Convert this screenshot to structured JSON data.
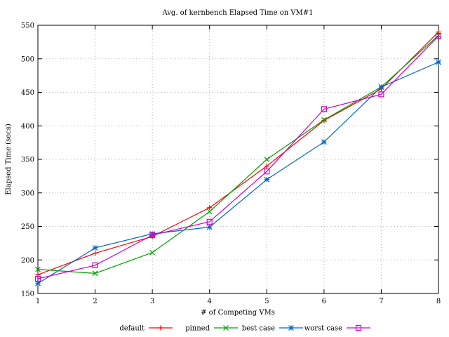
{
  "chart_data": {
    "type": "line",
    "title": "Avg. of kernbench Elapsed Time on VM#1",
    "xlabel": "# of Competing VMs",
    "ylabel": "Elapsed Time (secs)",
    "x": [
      1,
      2,
      3,
      4,
      5,
      6,
      7,
      8
    ],
    "xlim": [
      1,
      8
    ],
    "ylim": [
      150,
      550
    ],
    "xticks": [
      1,
      2,
      3,
      4,
      5,
      6,
      7,
      8
    ],
    "yticks": [
      150,
      200,
      250,
      300,
      350,
      400,
      450,
      500,
      550
    ],
    "grid": true,
    "legend_position": "bottom",
    "series": [
      {
        "name": "default",
        "color": "#ff0000",
        "marker": "plus",
        "values": [
          178,
          210,
          235,
          278,
          340,
          408,
          455,
          540
        ]
      },
      {
        "name": "pinned",
        "color": "#00a000",
        "marker": "cross",
        "values": [
          186,
          180,
          211,
          272,
          350,
          409,
          458,
          535
        ]
      },
      {
        "name": "best case",
        "color": "#0066cc",
        "marker": "star",
        "values": [
          165,
          218,
          239,
          249,
          320,
          376,
          458,
          495
        ]
      },
      {
        "name": "worst case",
        "color": "#cc00cc",
        "marker": "square",
        "values": [
          172,
          192,
          237,
          257,
          332,
          425,
          447,
          534
        ]
      }
    ]
  }
}
